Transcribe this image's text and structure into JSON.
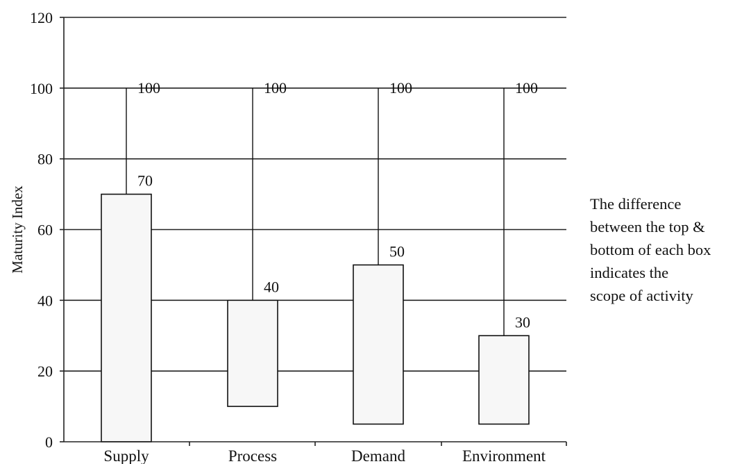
{
  "chart_data": {
    "type": "box",
    "categories": [
      "Supply",
      "Process",
      "Demand",
      "Environment"
    ],
    "boxes": [
      {
        "category": "Supply",
        "low": 0,
        "high": 70,
        "whisker_top": 100,
        "high_label": "70",
        "whisker_label": "100"
      },
      {
        "category": "Process",
        "low": 10,
        "high": 40,
        "whisker_top": 100,
        "high_label": "40",
        "whisker_label": "100"
      },
      {
        "category": "Demand",
        "low": 5,
        "high": 50,
        "whisker_top": 100,
        "high_label": "50",
        "whisker_label": "100"
      },
      {
        "category": "Environment",
        "low": 5,
        "high": 30,
        "whisker_top": 100,
        "high_label": "30",
        "whisker_label": "100"
      }
    ],
    "ylabel": "Maturity Index",
    "xlabel": "",
    "title": "",
    "ylim": [
      0,
      120
    ],
    "yticks": [
      0,
      20,
      40,
      60,
      80,
      100,
      120
    ],
    "grid": true,
    "annotation_lines": [
      "The difference",
      "between the top &",
      "bottom of each box",
      "indicates the",
      "scope of activity"
    ]
  }
}
